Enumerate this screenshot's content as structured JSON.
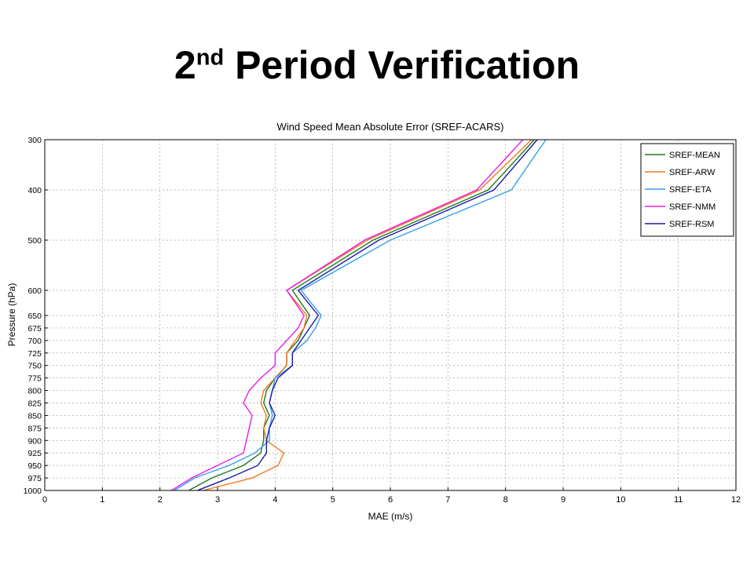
{
  "slide": {
    "title_number": "2",
    "title_suffix": "nd",
    "title_text": " Period Verification"
  },
  "chart_data": {
    "type": "line",
    "title": "Wind Speed Mean Absolute Error (SREF-ACARS)",
    "xlabel": "MAE (m/s)",
    "ylabel": "Pressure (hPa)",
    "xlim": [
      0,
      12
    ],
    "x_ticks": [
      0,
      1,
      2,
      3,
      4,
      5,
      6,
      7,
      8,
      9,
      10,
      11,
      12
    ],
    "y_ticks": [
      300,
      400,
      500,
      600,
      650,
      675,
      700,
      725,
      750,
      775,
      800,
      825,
      850,
      875,
      900,
      925,
      950,
      975,
      1000
    ],
    "grid": true,
    "legend_position": "top-right",
    "series": [
      {
        "name": "SREF-MEAN",
        "color": "#1f7a1f",
        "levels": [
          300,
          400,
          500,
          600,
          650,
          675,
          700,
          725,
          750,
          775,
          800,
          825,
          850,
          875,
          900,
          925,
          950,
          975,
          1000
        ],
        "values": [
          8.5,
          7.7,
          5.7,
          4.3,
          4.6,
          4.5,
          4.4,
          4.2,
          4.2,
          4.0,
          3.85,
          3.8,
          3.9,
          3.8,
          3.8,
          3.75,
          3.45,
          2.9,
          2.5
        ]
      },
      {
        "name": "SREF-ARW",
        "color": "#f07820",
        "levels": [
          300,
          400,
          500,
          600,
          650,
          675,
          700,
          725,
          750,
          775,
          800,
          825,
          850,
          875,
          900,
          925,
          950,
          975,
          1000
        ],
        "values": [
          8.45,
          7.55,
          5.6,
          4.2,
          4.55,
          4.5,
          4.35,
          4.2,
          4.2,
          4.0,
          3.8,
          3.75,
          3.85,
          3.8,
          3.85,
          4.15,
          4.05,
          3.6,
          2.75
        ]
      },
      {
        "name": "SREF-ETA",
        "color": "#33a0e6",
        "levels": [
          300,
          400,
          500,
          600,
          650,
          675,
          700,
          725,
          750,
          775,
          800,
          825,
          850,
          875,
          900,
          925,
          950,
          975,
          1000
        ],
        "values": [
          8.7,
          8.1,
          6.0,
          4.45,
          4.8,
          4.7,
          4.55,
          4.3,
          4.3,
          4.0,
          3.95,
          3.9,
          3.95,
          3.9,
          3.9,
          3.65,
          3.2,
          2.6,
          2.25
        ]
      },
      {
        "name": "SREF-NMM",
        "color": "#e61ee6",
        "levels": [
          300,
          400,
          500,
          600,
          650,
          675,
          700,
          725,
          750,
          775,
          800,
          825,
          850,
          875,
          900,
          925,
          950,
          975,
          1000
        ],
        "values": [
          8.3,
          7.5,
          5.55,
          4.2,
          4.5,
          4.4,
          4.2,
          4.0,
          4.0,
          3.75,
          3.55,
          3.45,
          3.6,
          3.55,
          3.5,
          3.45,
          3.0,
          2.55,
          2.2
        ]
      },
      {
        "name": "SREF-RSM",
        "color": "#1a1aa6",
        "levels": [
          300,
          400,
          500,
          600,
          650,
          675,
          700,
          725,
          750,
          775,
          800,
          825,
          850,
          875,
          900,
          925,
          950,
          975,
          1000
        ],
        "values": [
          8.55,
          7.8,
          5.8,
          4.4,
          4.75,
          4.6,
          4.45,
          4.3,
          4.3,
          4.05,
          3.95,
          3.9,
          4.0,
          3.9,
          3.85,
          3.85,
          3.7,
          3.2,
          2.65
        ]
      }
    ]
  }
}
